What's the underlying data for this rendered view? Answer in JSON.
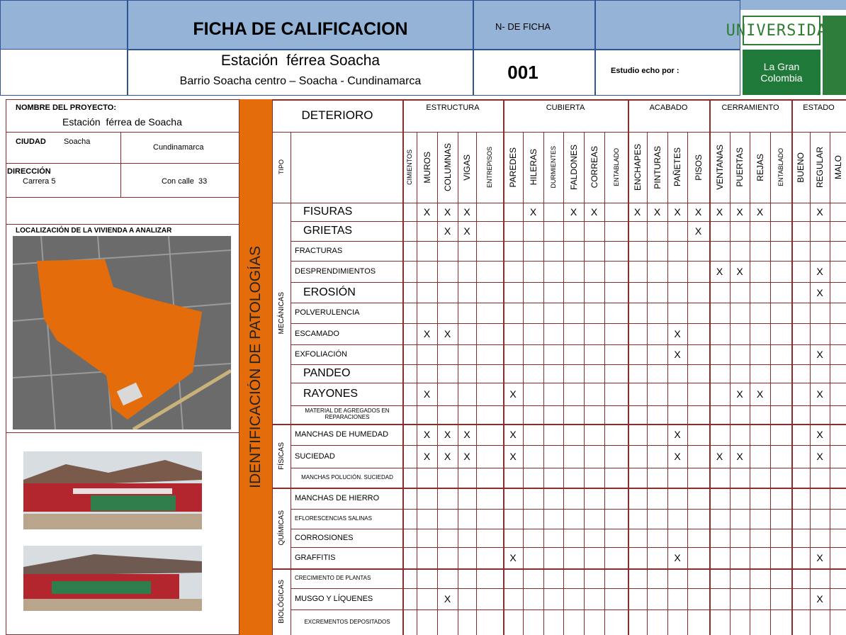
{
  "header": {
    "title": "FICHA  DE CALIFICACION",
    "site": "Estación  férrea Soacha",
    "address": "Barrio Soacha centro – Soacha - Cundinamarca",
    "ficha_label": "N- DE FICHA",
    "ficha_number": "001",
    "study_by": "Estudio echo por :",
    "logo_top": "UNIVERSIDAD",
    "logo_bottom": "La Gran Colombia"
  },
  "project": {
    "name_label": "NOMBRE DEL PROYECTO:",
    "name": "Estación  férrea de Soacha",
    "city_label": "CIUDAD",
    "city": "Soacha",
    "department": "Cundinamarca",
    "address_label": "DIRECCIÓN",
    "address_1": "Carrera 5",
    "address_2": "Con calle  33",
    "location_label": "LOCALIZACIÓN DE LA VIVIENDA A ANALIZAR"
  },
  "side_label": "IDENTIFICACIÓN DE PATOLOGÍAS",
  "table": {
    "title": "DETERIORO",
    "type_label": "TIPO",
    "mark": "X",
    "groups": [
      {
        "name": "ESTRUCTURA",
        "columns": [
          "CIMIENTOS",
          "MUROS",
          "COLUMNAS",
          "VIGAS",
          "ENTREPISOS"
        ]
      },
      {
        "name": "CUBIERTA",
        "columns": [
          "PAREDES",
          "HILERAS",
          "DURMIENTES",
          "FALDONES",
          "CORREAS",
          "ENTABLADO"
        ]
      },
      {
        "name": "ACABADO",
        "columns": [
          "ENCHAPES",
          "PINTURAS",
          "PAÑETES",
          "PISOS"
        ]
      },
      {
        "name": "CERRAMIENTO",
        "columns": [
          "VENTANAS",
          "PUERTAS",
          "REJAS",
          "ENTABLADO"
        ]
      },
      {
        "name": "ESTADO",
        "columns": [
          "BUENO",
          "REGULAR",
          "MALO"
        ]
      }
    ],
    "sections": [
      {
        "name": "MECÁNICAS",
        "rows": [
          {
            "label": "FISURAS",
            "marked": [
              1,
              2,
              3,
              6,
              8,
              9,
              11,
              12,
              13,
              14,
              15,
              16,
              17,
              20
            ]
          },
          {
            "label": "GRIETAS",
            "marked": [
              2,
              3,
              14
            ]
          },
          {
            "label": "FRACTURAS",
            "marked": []
          },
          {
            "label": "DESPRENDIMIENTOS",
            "marked": [
              15,
              16,
              20
            ]
          },
          {
            "label": "EROSIÓN",
            "marked": [
              20
            ]
          },
          {
            "label": "POLVERULENCIA",
            "marked": []
          },
          {
            "label": "ESCAMADO",
            "marked": [
              1,
              2,
              13
            ]
          },
          {
            "label": "EXFOLIACIÓN",
            "marked": [
              13,
              20
            ]
          },
          {
            "label": "PANDEO",
            "marked": []
          },
          {
            "label": "RAYONES",
            "marked": [
              1,
              5,
              16,
              17,
              20
            ]
          },
          {
            "label": "MATERIAL DE AGREGADOS EN REPARACIONES",
            "marked": []
          }
        ]
      },
      {
        "name": "FÍSICAS",
        "rows": [
          {
            "label": "MANCHAS DE HUMEDAD",
            "marked": [
              1,
              2,
              3,
              5,
              13,
              20
            ]
          },
          {
            "label": "SUCIEDAD",
            "marked": [
              1,
              2,
              3,
              5,
              13,
              15,
              16,
              20
            ]
          },
          {
            "label": "MANCHAS POLUCIÓN. SUCIEDAD",
            "marked": []
          }
        ]
      },
      {
        "name": "QUÍMICAS",
        "rows": [
          {
            "label": "MANCHAS DE HIERRO",
            "marked": []
          },
          {
            "label": "EFLORESCENCIAS SALINAS",
            "marked": []
          },
          {
            "label": "CORROSIONES",
            "marked": []
          },
          {
            "label": "GRAFFITIS",
            "marked": [
              5,
              13,
              20
            ]
          }
        ]
      },
      {
        "name": "BIOLÓGICAS",
        "rows": [
          {
            "label": "CRECIMIENTO DE PLANTAS",
            "marked": []
          },
          {
            "label": "MUSGO Y LÍQUENES",
            "marked": [
              2,
              20
            ]
          },
          {
            "label": "EXCREMENTOS DEPOSITADOS",
            "marked": []
          }
        ]
      }
    ]
  }
}
